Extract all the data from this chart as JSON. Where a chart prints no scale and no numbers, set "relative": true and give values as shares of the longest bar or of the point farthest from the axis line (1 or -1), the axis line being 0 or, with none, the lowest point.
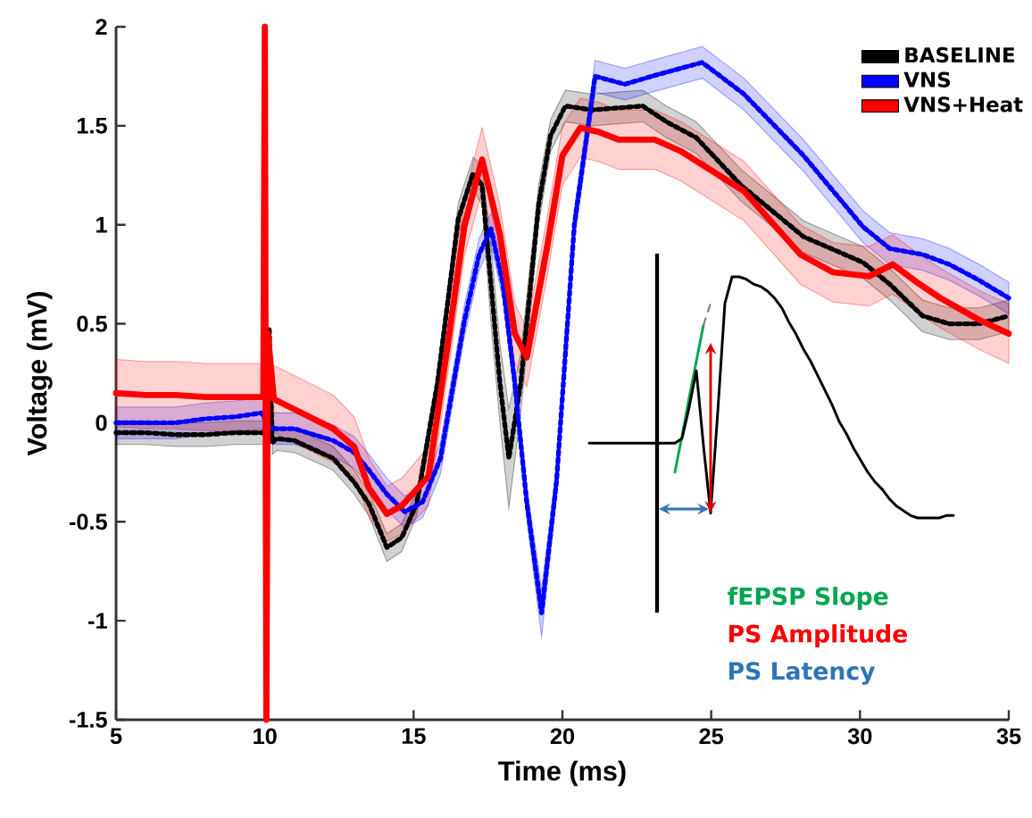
{
  "chart_data": [
    {
      "type": "line",
      "xlabel": "Time (ms)",
      "ylabel": "Voltage (mV)",
      "xlim": [
        5,
        35
      ],
      "xticks": [
        5,
        10,
        15,
        20,
        25,
        30,
        35
      ],
      "ylim": [
        -1.5,
        2
      ],
      "yticks": [
        -1.5,
        -1,
        -0.5,
        0,
        0.5,
        1,
        1.5,
        2
      ],
      "grid": false,
      "legend": "top right",
      "marker": "none",
      "series": [
        {
          "name": "BASELINE",
          "color": "#000000",
          "line_style": "dotted",
          "x": [
            5,
            6,
            7,
            8,
            9,
            10.0,
            10.15,
            10.25,
            10.4,
            11,
            12.3,
            13,
            13.5,
            14.1,
            14.6,
            15.1,
            15.8,
            16.5,
            17.0,
            17.3,
            17.6,
            17.9,
            18.2,
            18.6,
            19.2,
            19.6,
            20.1,
            21,
            22.7,
            23.5,
            24.5,
            26,
            28.1,
            30.1,
            31,
            32.1,
            33,
            34,
            35
          ],
          "values": [
            -0.05,
            -0.05,
            -0.06,
            -0.06,
            -0.05,
            -0.05,
            0.47,
            -0.1,
            -0.08,
            -0.09,
            -0.18,
            -0.3,
            -0.41,
            -0.63,
            -0.58,
            -0.41,
            0.2,
            1.03,
            1.26,
            1.2,
            0.7,
            0.2,
            -0.18,
            0.2,
            1.1,
            1.45,
            1.6,
            1.58,
            1.6,
            1.52,
            1.44,
            1.2,
            0.94,
            0.81,
            0.7,
            0.54,
            0.5,
            0.5,
            0.54
          ],
          "lower": [
            -0.11,
            -0.11,
            -0.12,
            -0.12,
            -0.11,
            -0.11,
            null,
            -0.16,
            -0.14,
            -0.15,
            -0.24,
            -0.36,
            -0.47,
            -0.7,
            -0.65,
            -0.47,
            0.14,
            0.95,
            1.18,
            1.1,
            0.5,
            0.0,
            -0.43,
            0.05,
            1.0,
            1.37,
            1.52,
            1.5,
            1.52,
            1.44,
            1.36,
            1.12,
            0.86,
            0.73,
            0.62,
            0.46,
            0.42,
            0.42,
            0.46
          ],
          "upper": [
            0.01,
            0.01,
            0.0,
            0.0,
            0.01,
            0.01,
            null,
            -0.04,
            -0.02,
            -0.03,
            -0.12,
            -0.24,
            -0.35,
            -0.56,
            -0.51,
            -0.35,
            0.26,
            1.11,
            1.34,
            1.3,
            0.9,
            0.4,
            0.07,
            0.35,
            1.2,
            1.53,
            1.68,
            1.66,
            1.68,
            1.6,
            1.52,
            1.28,
            1.02,
            0.89,
            0.78,
            0.62,
            0.58,
            0.58,
            0.62
          ]
        },
        {
          "name": "VNS",
          "color": "#0000ff",
          "line_style": "dotted",
          "x": [
            5,
            6,
            7,
            8,
            9,
            9.9,
            10.1,
            10.4,
            11,
            12.3,
            13,
            13.5,
            14.1,
            14.7,
            15.3,
            15.9,
            16.7,
            17.2,
            17.6,
            18.0,
            18.4,
            18.8,
            19.3,
            19.8,
            20.4,
            21.1,
            22.1,
            23,
            24.7,
            26.1,
            28.1,
            30.1,
            31,
            32.1,
            33,
            34,
            35
          ],
          "values": [
            0.0,
            0.0,
            0.0,
            0.02,
            0.03,
            0.05,
            -0.02,
            -0.03,
            -0.03,
            -0.09,
            -0.15,
            -0.24,
            -0.36,
            -0.45,
            -0.4,
            -0.18,
            0.51,
            0.85,
            0.98,
            0.7,
            0.2,
            -0.4,
            -0.96,
            -0.3,
            1.0,
            1.75,
            1.71,
            1.75,
            1.82,
            1.66,
            1.35,
            0.99,
            0.88,
            0.85,
            0.8,
            0.72,
            0.63
          ],
          "lower": [
            -0.08,
            -0.08,
            -0.08,
            -0.06,
            -0.05,
            -0.03,
            -0.1,
            -0.11,
            -0.11,
            -0.17,
            -0.23,
            -0.32,
            -0.44,
            -0.53,
            -0.48,
            -0.26,
            0.43,
            0.77,
            0.9,
            0.62,
            0.12,
            -0.48,
            -1.08,
            -0.38,
            0.92,
            1.67,
            1.63,
            1.67,
            1.74,
            1.58,
            1.27,
            0.91,
            0.8,
            0.77,
            0.72,
            0.64,
            0.55
          ],
          "upper": [
            0.08,
            0.08,
            0.08,
            0.1,
            0.11,
            0.13,
            0.06,
            0.05,
            0.05,
            -0.01,
            -0.07,
            -0.16,
            -0.28,
            -0.37,
            -0.32,
            -0.1,
            0.59,
            0.93,
            1.06,
            0.78,
            0.28,
            -0.32,
            -0.84,
            -0.22,
            1.08,
            1.83,
            1.79,
            1.83,
            1.9,
            1.74,
            1.43,
            1.07,
            0.96,
            0.93,
            0.88,
            0.8,
            0.71
          ]
        },
        {
          "name": "VNS+Heat",
          "color": "#ff0000",
          "line_style": "solid",
          "x": [
            5,
            6,
            7,
            8,
            9,
            9.95,
            10.0,
            10.05,
            10.1,
            10.3,
            10.7,
            12.3,
            13,
            13.5,
            14.1,
            14.6,
            15.5,
            16.2,
            16.7,
            17.3,
            17.9,
            18.4,
            18.8,
            19.5,
            20.0,
            20.6,
            21.2,
            21.9,
            23.1,
            24,
            26.1,
            28,
            29.1,
            30.3,
            31.1,
            32,
            32.7,
            34,
            35
          ],
          "values": [
            0.15,
            0.14,
            0.14,
            0.13,
            0.13,
            0.13,
            2,
            -1.5,
            0.45,
            0.12,
            0.09,
            -0.03,
            -0.12,
            -0.33,
            -0.46,
            -0.42,
            -0.27,
            0.45,
            0.99,
            1.33,
            0.95,
            0.45,
            0.33,
            0.9,
            1.35,
            1.49,
            1.47,
            1.43,
            1.43,
            1.37,
            1.17,
            0.85,
            0.76,
            0.74,
            0.8,
            0.7,
            0.63,
            0.52,
            0.45
          ],
          "lower": [
            -0.02,
            -0.03,
            -0.03,
            -0.04,
            -0.04,
            -0.04,
            null,
            null,
            null,
            -0.05,
            -0.08,
            -0.2,
            -0.27,
            -0.48,
            -0.6,
            -0.56,
            -0.42,
            0.3,
            0.84,
            1.17,
            0.8,
            0.3,
            0.18,
            0.75,
            1.2,
            1.34,
            1.32,
            1.28,
            1.28,
            1.22,
            1.02,
            0.7,
            0.61,
            0.59,
            0.65,
            0.55,
            0.48,
            0.37,
            0.3
          ],
          "upper": [
            0.32,
            0.31,
            0.31,
            0.3,
            0.3,
            0.3,
            null,
            null,
            null,
            0.29,
            0.26,
            0.14,
            0.03,
            -0.18,
            -0.32,
            -0.28,
            -0.12,
            0.6,
            1.14,
            1.49,
            1.1,
            0.6,
            0.48,
            1.05,
            1.5,
            1.64,
            1.62,
            1.58,
            1.58,
            1.52,
            1.32,
            1.0,
            0.91,
            0.89,
            0.95,
            0.85,
            0.78,
            0.67,
            0.6
          ]
        }
      ]
    },
    {
      "type": "line",
      "relative": true,
      "annotations": [
        "fEPSP Slope",
        "PS Amplitude",
        "PS Latency"
      ],
      "categories": [
        null,
        null,
        null,
        null,
        null,
        null,
        null,
        null,
        null,
        null,
        null,
        null,
        null,
        null,
        null,
        null,
        null,
        null,
        null,
        null,
        null,
        null,
        null,
        null,
        null,
        null,
        null,
        null,
        null,
        null,
        null,
        null,
        null,
        null,
        null,
        null,
        null,
        null,
        null,
        null,
        null,
        null,
        null,
        null,
        null,
        null,
        null,
        null,
        null,
        null,
        null,
        null
      ],
      "series": [
        {
          "color": "#00a651",
          "line_style": "solid",
          "values": [
            null,
            null,
            null,
            null,
            null,
            null,
            null,
            null,
            null,
            null,
            null,
            null,
            0.19,
            0.34,
            0.5,
            0.65,
            0.8,
            null,
            null,
            null,
            null,
            null,
            null,
            null,
            null,
            null,
            null,
            null,
            null,
            null,
            null,
            null,
            null,
            null,
            null,
            null,
            null,
            null,
            null,
            null,
            null,
            null,
            null,
            null,
            null,
            null,
            null,
            null,
            null,
            null,
            null,
            null
          ]
        },
        {
          "color": "#808080",
          "line_style": "dashed",
          "values": [
            null,
            null,
            null,
            null,
            null,
            null,
            null,
            null,
            null,
            null,
            null,
            null,
            null,
            null,
            null,
            null,
            0.8,
            0.89,
            null,
            null,
            null,
            null,
            null,
            null,
            null,
            null,
            null,
            null,
            null,
            null,
            null,
            null,
            null,
            null,
            null,
            null,
            null,
            null,
            null,
            null,
            null,
            null,
            null,
            null,
            null,
            null,
            null,
            null,
            null,
            null,
            null,
            null
          ]
        },
        {
          "color": "#000000",
          "line_style": "solid",
          "values": [
            0.31,
            0.31,
            0.31,
            0.31,
            0.31,
            0.31,
            0.31,
            0.31,
            0.31,
            0.31,
            0.31,
            0.31,
            0.31,
            0.33,
            0.46,
            0.61,
            0.3,
            0.02,
            0.44,
            0.89,
            1.0,
            1.0,
            0.99,
            0.97,
            0.96,
            0.94,
            0.91,
            0.87,
            0.81,
            0.76,
            0.7,
            0.65,
            0.59,
            0.53,
            0.47,
            0.4,
            0.35,
            0.29,
            0.24,
            0.19,
            0.15,
            0.12,
            0.08,
            0.05,
            0.03,
            0.01,
            0,
            0,
            0,
            0,
            0.01,
            0.01
          ]
        }
      ]
    }
  ]
}
